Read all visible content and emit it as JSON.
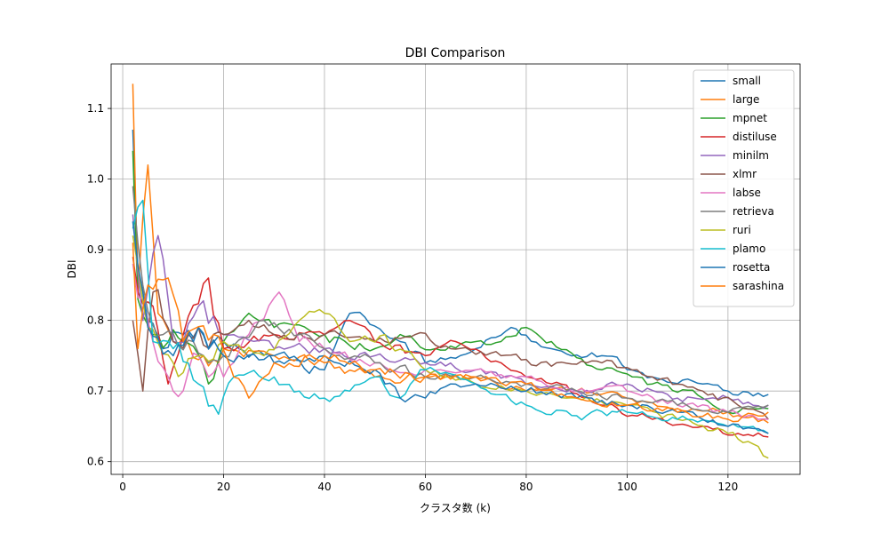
{
  "chart_data": {
    "type": "line",
    "title": "DBI Comparison",
    "xlabel": "クラスタ数 (k)",
    "ylabel": "DBI",
    "xlim": [
      -2.3,
      134.3
    ],
    "ylim": [
      0.582,
      1.163
    ],
    "xticks": [
      0,
      20,
      40,
      60,
      80,
      100,
      120
    ],
    "yticks": [
      0.6,
      0.7,
      0.8,
      0.9,
      1.0,
      1.1
    ],
    "ytick_labels": [
      "0.6",
      "0.7",
      "0.8",
      "0.9",
      "1.0",
      "1.1"
    ],
    "grid": true,
    "legend": {
      "position": "top-right"
    },
    "series": [
      {
        "name": "small",
        "color": "#1f77b4",
        "anchors": [
          [
            2,
            1.07
          ],
          [
            3,
            0.87
          ],
          [
            5,
            0.8
          ],
          [
            8,
            0.76
          ],
          [
            12,
            0.78
          ],
          [
            20,
            0.77
          ],
          [
            30,
            0.74
          ],
          [
            40,
            0.73
          ],
          [
            45,
            0.81
          ],
          [
            55,
            0.77
          ],
          [
            60,
            0.74
          ],
          [
            70,
            0.76
          ],
          [
            77,
            0.79
          ],
          [
            85,
            0.76
          ],
          [
            95,
            0.75
          ],
          [
            105,
            0.72
          ],
          [
            115,
            0.71
          ],
          [
            120,
            0.7
          ],
          [
            128,
            0.695
          ]
        ]
      },
      {
        "name": "large",
        "color": "#ff7f0e",
        "anchors": [
          [
            2,
            1.135
          ],
          [
            3,
            0.84
          ],
          [
            5,
            1.02
          ],
          [
            7,
            0.81
          ],
          [
            10,
            0.77
          ],
          [
            16,
            0.75
          ],
          [
            20,
            0.76
          ],
          [
            30,
            0.75
          ],
          [
            40,
            0.74
          ],
          [
            50,
            0.72
          ],
          [
            60,
            0.72
          ],
          [
            70,
            0.72
          ],
          [
            80,
            0.7
          ],
          [
            90,
            0.7
          ],
          [
            100,
            0.69
          ],
          [
            110,
            0.675
          ],
          [
            120,
            0.67
          ],
          [
            128,
            0.655
          ]
        ]
      },
      {
        "name": "mpnet",
        "color": "#2ca02c",
        "anchors": [
          [
            2,
            1.04
          ],
          [
            3,
            0.83
          ],
          [
            6,
            0.78
          ],
          [
            12,
            0.77
          ],
          [
            17,
            0.71
          ],
          [
            20,
            0.77
          ],
          [
            25,
            0.81
          ],
          [
            30,
            0.79
          ],
          [
            40,
            0.78
          ],
          [
            50,
            0.76
          ],
          [
            55,
            0.78
          ],
          [
            62,
            0.76
          ],
          [
            70,
            0.77
          ],
          [
            75,
            0.77
          ],
          [
            80,
            0.79
          ],
          [
            85,
            0.77
          ],
          [
            95,
            0.73
          ],
          [
            105,
            0.71
          ],
          [
            115,
            0.69
          ],
          [
            122,
            0.67
          ],
          [
            128,
            0.675
          ]
        ]
      },
      {
        "name": "distiluse",
        "color": "#d62728",
        "anchors": [
          [
            2,
            0.89
          ],
          [
            3,
            0.84
          ],
          [
            6,
            0.82
          ],
          [
            9,
            0.71
          ],
          [
            12,
            0.78
          ],
          [
            17,
            0.86
          ],
          [
            20,
            0.76
          ],
          [
            30,
            0.78
          ],
          [
            40,
            0.78
          ],
          [
            45,
            0.8
          ],
          [
            50,
            0.77
          ],
          [
            60,
            0.75
          ],
          [
            66,
            0.77
          ],
          [
            75,
            0.74
          ],
          [
            85,
            0.71
          ],
          [
            95,
            0.68
          ],
          [
            105,
            0.66
          ],
          [
            115,
            0.65
          ],
          [
            122,
            0.64
          ],
          [
            128,
            0.635
          ]
        ]
      },
      {
        "name": "minilm",
        "color": "#9467bd",
        "anchors": [
          [
            2,
            0.95
          ],
          [
            4,
            0.8
          ],
          [
            7,
            0.92
          ],
          [
            10,
            0.77
          ],
          [
            15,
            0.82
          ],
          [
            20,
            0.78
          ],
          [
            30,
            0.76
          ],
          [
            40,
            0.76
          ],
          [
            50,
            0.75
          ],
          [
            60,
            0.74
          ],
          [
            70,
            0.73
          ],
          [
            80,
            0.71
          ],
          [
            90,
            0.7
          ],
          [
            100,
            0.71
          ],
          [
            110,
            0.69
          ],
          [
            120,
            0.69
          ],
          [
            128,
            0.68
          ]
        ]
      },
      {
        "name": "xlmr",
        "color": "#8c564b",
        "anchors": [
          [
            2,
            0.8
          ],
          [
            4,
            0.7
          ],
          [
            6,
            0.84
          ],
          [
            10,
            0.77
          ],
          [
            15,
            0.79
          ],
          [
            20,
            0.78
          ],
          [
            25,
            0.8
          ],
          [
            30,
            0.78
          ],
          [
            40,
            0.78
          ],
          [
            50,
            0.77
          ],
          [
            58,
            0.78
          ],
          [
            65,
            0.76
          ],
          [
            75,
            0.75
          ],
          [
            85,
            0.735
          ],
          [
            95,
            0.74
          ],
          [
            105,
            0.72
          ],
          [
            115,
            0.7
          ],
          [
            122,
            0.68
          ],
          [
            128,
            0.66
          ]
        ]
      },
      {
        "name": "labse",
        "color": "#e377c2",
        "anchors": [
          [
            2,
            0.88
          ],
          [
            5,
            0.8
          ],
          [
            10,
            0.7
          ],
          [
            15,
            0.75
          ],
          [
            20,
            0.72
          ],
          [
            25,
            0.78
          ],
          [
            31,
            0.84
          ],
          [
            35,
            0.77
          ],
          [
            40,
            0.76
          ],
          [
            50,
            0.74
          ],
          [
            60,
            0.73
          ],
          [
            70,
            0.73
          ],
          [
            80,
            0.72
          ],
          [
            90,
            0.7
          ],
          [
            100,
            0.7
          ],
          [
            110,
            0.68
          ],
          [
            120,
            0.67
          ],
          [
            128,
            0.66
          ]
        ]
      },
      {
        "name": "retrieva",
        "color": "#7f7f7f",
        "anchors": [
          [
            2,
            0.99
          ],
          [
            4,
            0.85
          ],
          [
            8,
            0.78
          ],
          [
            14,
            0.77
          ],
          [
            20,
            0.75
          ],
          [
            28,
            0.8
          ],
          [
            35,
            0.78
          ],
          [
            40,
            0.76
          ],
          [
            50,
            0.74
          ],
          [
            60,
            0.72
          ],
          [
            70,
            0.72
          ],
          [
            80,
            0.71
          ],
          [
            90,
            0.7
          ],
          [
            100,
            0.69
          ],
          [
            110,
            0.68
          ],
          [
            120,
            0.67
          ],
          [
            128,
            0.68
          ]
        ]
      },
      {
        "name": "ruri",
        "color": "#bcbd22",
        "anchors": [
          [
            2,
            0.92
          ],
          [
            5,
            0.79
          ],
          [
            10,
            0.74
          ],
          [
            15,
            0.75
          ],
          [
            20,
            0.77
          ],
          [
            28,
            0.75
          ],
          [
            35,
            0.8
          ],
          [
            40,
            0.81
          ],
          [
            45,
            0.77
          ],
          [
            52,
            0.78
          ],
          [
            60,
            0.73
          ],
          [
            70,
            0.71
          ],
          [
            80,
            0.7
          ],
          [
            90,
            0.69
          ],
          [
            100,
            0.68
          ],
          [
            110,
            0.66
          ],
          [
            120,
            0.64
          ],
          [
            125,
            0.625
          ],
          [
            128,
            0.605
          ]
        ]
      },
      {
        "name": "plamo",
        "color": "#17becf",
        "anchors": [
          [
            2,
            0.93
          ],
          [
            4,
            0.97
          ],
          [
            6,
            0.77
          ],
          [
            10,
            0.76
          ],
          [
            15,
            0.71
          ],
          [
            18,
            0.68
          ],
          [
            22,
            0.72
          ],
          [
            30,
            0.72
          ],
          [
            35,
            0.7
          ],
          [
            40,
            0.69
          ],
          [
            45,
            0.7
          ],
          [
            50,
            0.72
          ],
          [
            55,
            0.69
          ],
          [
            60,
            0.73
          ],
          [
            70,
            0.71
          ],
          [
            80,
            0.68
          ],
          [
            90,
            0.665
          ],
          [
            100,
            0.67
          ],
          [
            110,
            0.66
          ],
          [
            120,
            0.65
          ],
          [
            128,
            0.64
          ]
        ]
      },
      {
        "name": "rosetta",
        "color": "#1f77b4",
        "anchors": [
          [
            2,
            0.94
          ],
          [
            5,
            0.79
          ],
          [
            10,
            0.75
          ],
          [
            15,
            0.79
          ],
          [
            20,
            0.75
          ],
          [
            30,
            0.75
          ],
          [
            40,
            0.75
          ],
          [
            50,
            0.73
          ],
          [
            55,
            0.69
          ],
          [
            60,
            0.69
          ],
          [
            65,
            0.71
          ],
          [
            70,
            0.71
          ],
          [
            80,
            0.7
          ],
          [
            90,
            0.69
          ],
          [
            100,
            0.68
          ],
          [
            110,
            0.67
          ],
          [
            115,
            0.66
          ],
          [
            120,
            0.65
          ],
          [
            128,
            0.64
          ]
        ]
      },
      {
        "name": "sarashina",
        "color": "#ff7f0e",
        "anchors": [
          [
            2,
            0.91
          ],
          [
            3,
            0.76
          ],
          [
            5,
            0.85
          ],
          [
            9,
            0.86
          ],
          [
            12,
            0.77
          ],
          [
            18,
            0.78
          ],
          [
            22,
            0.72
          ],
          [
            25,
            0.69
          ],
          [
            30,
            0.74
          ],
          [
            40,
            0.75
          ],
          [
            50,
            0.73
          ],
          [
            60,
            0.72
          ],
          [
            70,
            0.72
          ],
          [
            80,
            0.71
          ],
          [
            90,
            0.69
          ],
          [
            100,
            0.68
          ],
          [
            110,
            0.67
          ],
          [
            120,
            0.66
          ],
          [
            128,
            0.67
          ]
        ]
      }
    ]
  }
}
